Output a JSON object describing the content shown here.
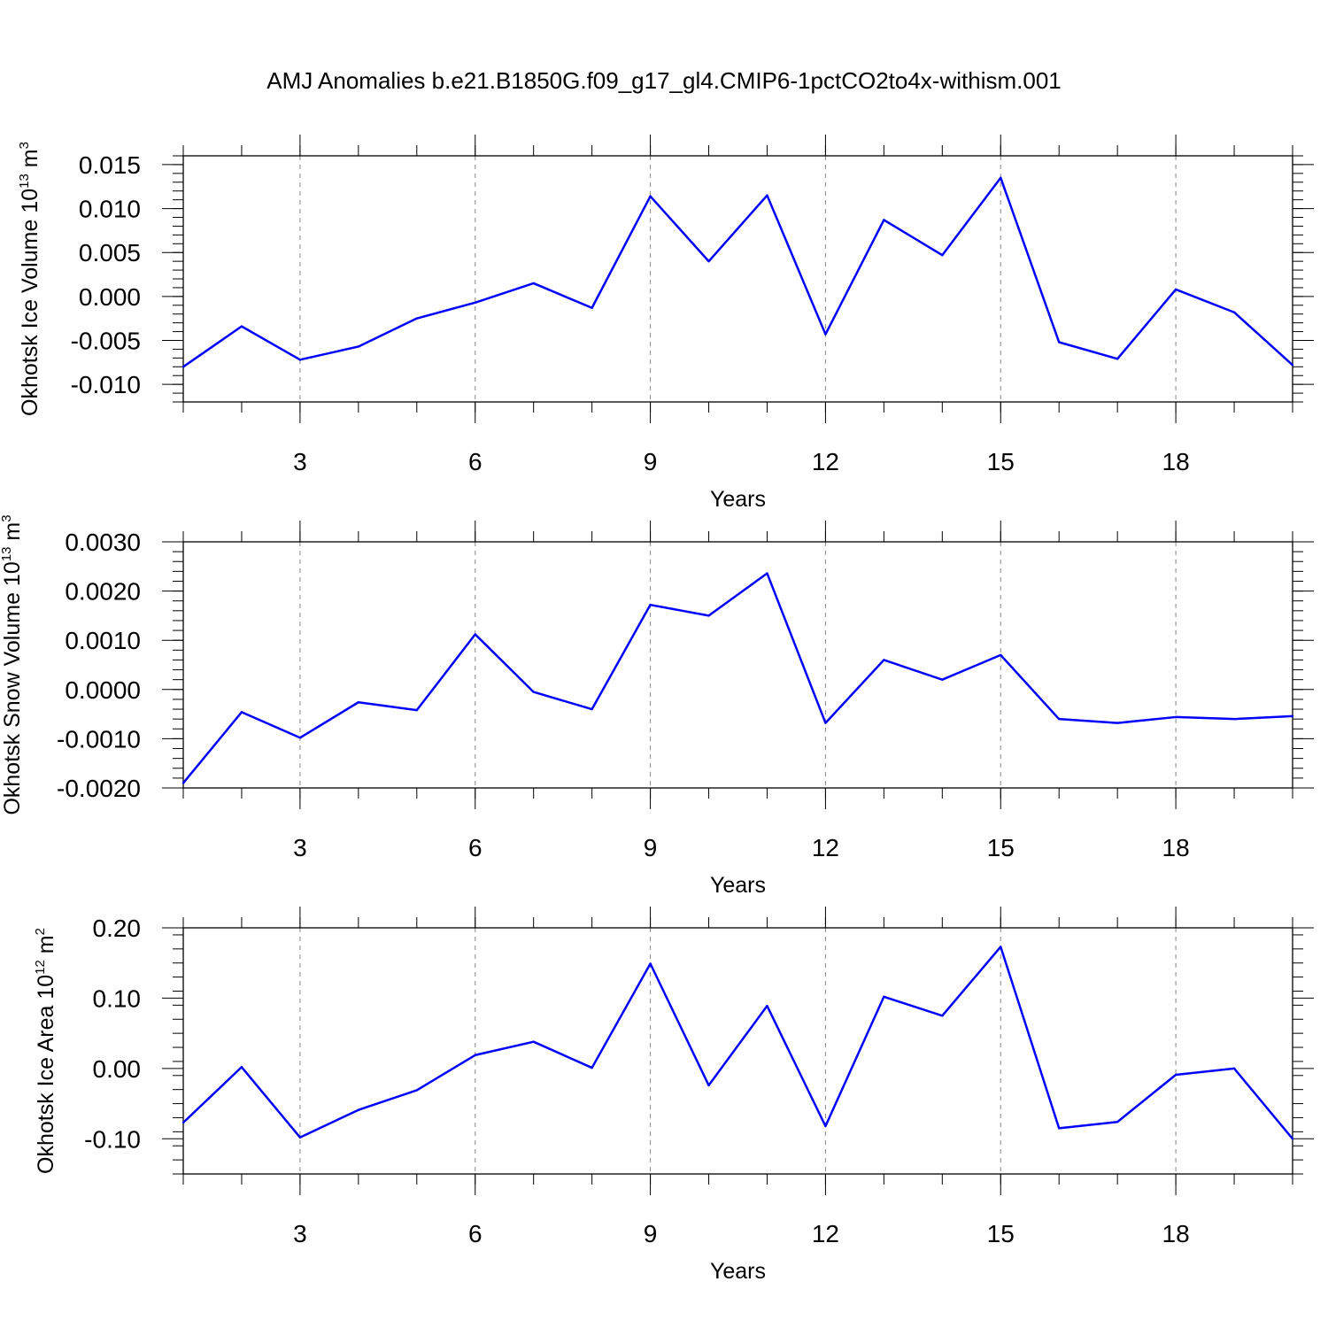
{
  "title": "AMJ Anomalies b.e21.B1850G.f09_g17_gl4.CMIP6-1pctCO2to4x-withism.001",
  "colors": {
    "line": "#0000ff",
    "axis": "#000000",
    "grid": "#888888",
    "background": "#ffffff"
  },
  "chart_data": [
    {
      "type": "line",
      "title": "",
      "xlabel": "Years",
      "ylabel": {
        "prefix": "Okhotsk Ice Volume 10",
        "exp": "13",
        "unit": " m",
        "unit_exp": "3"
      },
      "xlim": [
        1,
        20
      ],
      "ylim": [
        -0.012,
        0.016
      ],
      "x_ticks": [
        3,
        6,
        9,
        12,
        15,
        18
      ],
      "x_tick_labels": [
        "3",
        "6",
        "9",
        "12",
        "15",
        "18"
      ],
      "y_ticks": [
        -0.01,
        -0.005,
        0,
        0.005,
        0.01,
        0.015
      ],
      "y_tick_labels": [
        "-0.010",
        "-0.005",
        "0.000",
        "0.005",
        "0.010",
        "0.015"
      ],
      "x": [
        1,
        2,
        3,
        4,
        5,
        6,
        7,
        8,
        9,
        10,
        11,
        12,
        13,
        14,
        15,
        16,
        17,
        18,
        19,
        20
      ],
      "series": [
        {
          "name": "Okhotsk Ice Volume",
          "values": [
            -0.008,
            -0.0034,
            -0.0072,
            -0.0057,
            -0.0025,
            -0.0007,
            0.0015,
            -0.0013,
            0.0114,
            0.004,
            0.0115,
            -0.0043,
            0.0087,
            0.0047,
            0.0135,
            -0.0052,
            -0.0071,
            0.0008,
            -0.0018,
            -0.0078
          ]
        }
      ]
    },
    {
      "type": "line",
      "title": "",
      "xlabel": "Years",
      "ylabel": {
        "prefix": "Okhotsk Snow Volume 10",
        "exp": "13",
        "unit": " m",
        "unit_exp": "3"
      },
      "xlim": [
        1,
        20
      ],
      "ylim": [
        -0.002,
        0.003
      ],
      "x_ticks": [
        3,
        6,
        9,
        12,
        15,
        18
      ],
      "x_tick_labels": [
        "3",
        "6",
        "9",
        "12",
        "15",
        "18"
      ],
      "y_ticks": [
        -0.002,
        -0.001,
        0,
        0.001,
        0.002,
        0.003
      ],
      "y_tick_labels": [
        "-0.0020",
        "-0.0010",
        "0.0000",
        "0.0010",
        "0.0020",
        "0.0030"
      ],
      "x": [
        1,
        2,
        3,
        4,
        5,
        6,
        7,
        8,
        9,
        10,
        11,
        12,
        13,
        14,
        15,
        16,
        17,
        18,
        19,
        20
      ],
      "series": [
        {
          "name": "Okhotsk Snow Volume",
          "values": [
            -0.0019,
            -0.00046,
            -0.00098,
            -0.00026,
            -0.00042,
            0.00112,
            -5e-05,
            -0.0004,
            0.00172,
            0.0015,
            0.00236,
            -0.00068,
            0.0006,
            0.0002,
            0.0007,
            -0.0006,
            -0.00068,
            -0.00056,
            -0.0006,
            -0.00054
          ]
        }
      ]
    },
    {
      "type": "line",
      "title": "",
      "xlabel": "Years",
      "ylabel": {
        "prefix": "Okhotsk Ice Area 10",
        "exp": "12",
        "unit": " m",
        "unit_exp": "2"
      },
      "xlim": [
        1,
        20
      ],
      "ylim": [
        -0.15,
        0.2
      ],
      "x_ticks": [
        3,
        6,
        9,
        12,
        15,
        18
      ],
      "x_tick_labels": [
        "3",
        "6",
        "9",
        "12",
        "15",
        "18"
      ],
      "y_ticks": [
        -0.1,
        0,
        0.1,
        0.2
      ],
      "y_tick_labels": [
        "-0.10",
        "0.00",
        "0.10",
        "0.20"
      ],
      "x": [
        1,
        2,
        3,
        4,
        5,
        6,
        7,
        8,
        9,
        10,
        11,
        12,
        13,
        14,
        15,
        16,
        17,
        18,
        19,
        20
      ],
      "series": [
        {
          "name": "Okhotsk Ice Area",
          "values": [
            -0.077,
            0.002,
            -0.098,
            -0.059,
            -0.031,
            0.019,
            0.038,
            0.001,
            0.149,
            -0.024,
            0.089,
            -0.082,
            0.102,
            0.075,
            0.173,
            -0.085,
            -0.076,
            -0.009,
            0.0,
            -0.1
          ]
        }
      ]
    }
  ]
}
